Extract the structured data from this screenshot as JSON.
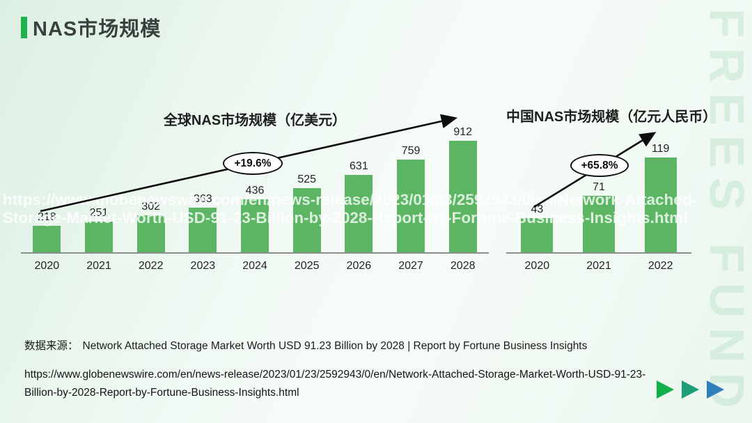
{
  "slide": {
    "title": "NAS市场规模",
    "accent_color": "#21b14b"
  },
  "watermarks": {
    "brand": "FREES FUND",
    "url_overlay": "https://www.globenewswire.com/en/news-release/2023/01/23/2592943/0/en/Network-Attached-Storage-Market-Worth-USD-91-23-Billion-by-2028-Report-by-Fortune-Business-Insights.html"
  },
  "chart_data": [
    {
      "type": "bar",
      "title": "全球NAS市场规模（亿美元）",
      "categories": [
        "2020",
        "2021",
        "2022",
        "2023",
        "2024",
        "2025",
        "2026",
        "2027",
        "2028"
      ],
      "values": [
        218,
        251,
        302,
        363,
        436,
        525,
        631,
        759,
        912
      ],
      "growth_label": "+19.6%",
      "bar_color": "#5bb563",
      "xlabel": "",
      "ylabel": "",
      "ylim": [
        0,
        950
      ],
      "grid": false,
      "legend": false
    },
    {
      "type": "bar",
      "title": "中国NAS市场规模（亿元人民币）",
      "categories": [
        "2020",
        "2021",
        "2022"
      ],
      "values": [
        43,
        71,
        119
      ],
      "growth_label": "+65.8%",
      "bar_color": "#5bb563",
      "xlabel": "",
      "ylabel": "",
      "ylim": [
        0,
        125
      ],
      "grid": false,
      "legend": false
    }
  ],
  "footer": {
    "source_prefix": "数据来源：",
    "source_text": "Network Attached Storage Market Worth USD 91.23 Billion by 2028 | Report by Fortune Business Insights",
    "url": "https://www.globenewswire.com/en/news-release/2023/01/23/2592943/0/en/Network-Attached-Storage-Market-Worth-USD-91-23-Billion-by-2028-Report-by-Fortune-Business-Insights.html"
  },
  "nav_arrows": [
    {
      "color": "#12b04b"
    },
    {
      "color": "#1d9e79"
    },
    {
      "color": "#2e7fba"
    }
  ]
}
